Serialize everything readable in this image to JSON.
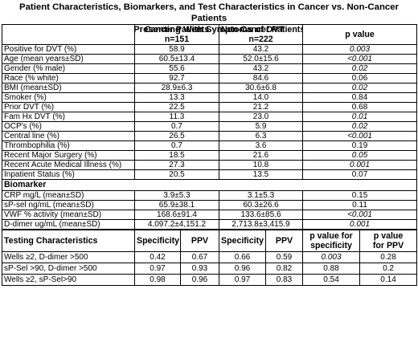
{
  "title": {
    "line1": "Patient Characteristics, Biomarkers, and Test Characteristics in Cancer vs. Non-Cancer Patients",
    "line2": "Presenting With Symptoms of DVT"
  },
  "header": {
    "cancer_line1": "Cancer Patients",
    "cancer_line2": "n=151",
    "noncancer_line1": "Non-Cancer Patients",
    "noncancer_line2": "n=222",
    "pvalue": "p value"
  },
  "characteristics": [
    {
      "label": "Positive for DVT (%)",
      "cancer": "58.9",
      "noncancer": "43.2",
      "p": "0.003",
      "italic": true
    },
    {
      "label": "Age (mean years±SD)",
      "cancer": "60.5±13.4",
      "noncancer": "52.0±15.6",
      "p": "<0.001",
      "italic": true
    },
    {
      "label": "Gender (% male)",
      "cancer": "55.6",
      "noncancer": "43.2",
      "p": "0.02",
      "italic": true
    },
    {
      "label": "Race (% white)",
      "cancer": "92.7",
      "noncancer": "84.6",
      "p": "0.06",
      "italic": false
    },
    {
      "label": "BMI (mean±SD)",
      "cancer": "28.9±6.3",
      "noncancer": "30.6±6.8",
      "p": "0.02",
      "italic": true
    },
    {
      "label": "Smoker (%)",
      "cancer": "13.3",
      "noncancer": "14.0",
      "p": "0.84",
      "italic": false
    },
    {
      "label": "Prior DVT (%)",
      "cancer": "22.5",
      "noncancer": "21.2",
      "p": "0.68",
      "italic": false
    },
    {
      "label": "Fam Hx DVT (%)",
      "cancer": "11.3",
      "noncancer": "23.0",
      "p": "0.01",
      "italic": true
    },
    {
      "label": "OCP's (%)",
      "cancer": "0.7",
      "noncancer": "5.9",
      "p": "0.02",
      "italic": true
    },
    {
      "label": "Central line (%)",
      "cancer": "26.5",
      "noncancer": "6.3",
      "p": "<0.001",
      "italic": true
    },
    {
      "label": "Thrombophilia (%)",
      "cancer": "0.7",
      "noncancer": "3.6",
      "p": "0.19",
      "italic": false
    },
    {
      "label": "Recent Major Surgery (%)",
      "cancer": "18.5",
      "noncancer": "21.6",
      "p": "0.05",
      "italic": true
    },
    {
      "label": "Recent Acute Medical Illness (%)",
      "cancer": "27.3",
      "noncancer": "10.8",
      "p": "0.001",
      "italic": true
    },
    {
      "label": "Inpatient Status (%)",
      "cancer": "20.5",
      "noncancer": "13.5",
      "p": "0.07",
      "italic": false
    }
  ],
  "biomarker_section": "Biomarker",
  "biomarkers": [
    {
      "label": "CRP mg/L (mean±SD)",
      "cancer": "3.9±5.3",
      "noncancer": "3.1±5.3",
      "p": "0.15",
      "italic": false
    },
    {
      "label": "sP-sel ng/mL (mean±SD)",
      "cancer": "65.9±38.1",
      "noncancer": "60.3±26.6",
      "p": "0.11",
      "italic": false
    },
    {
      "label": "VWF % activity (mean±SD)",
      "cancer": "168.6±91.4",
      "noncancer": "133.6±85.6",
      "p": "<0.001",
      "italic": true
    },
    {
      "label": "D-dimer ug/mL (mean±SD)",
      "cancer": "4,097.2±4,151.2",
      "noncancer": "2,713.8±3,415.9",
      "p": "0.001",
      "italic": true
    }
  ],
  "testing_header": {
    "label": "Testing Characteristics",
    "spec1": "Specificity",
    "ppv1": "PPV",
    "spec2": "Specificity",
    "ppv2": "PPV",
    "pspec_line1": "p value for",
    "pspec_line2": "specificity",
    "pppv_line1": "p value",
    "pppv_line2": "for PPV"
  },
  "testing": [
    {
      "label": "Wells ≥2, D-dimer >500",
      "spec1": "0.42",
      "ppv1": "0.67",
      "spec2": "0.66",
      "ppv2": "0.59",
      "pspec": "0.003",
      "pspec_italic": true,
      "pppv": "0.28"
    },
    {
      "label": "sP-Sel >90, D-dimer >500",
      "spec1": "0.97",
      "ppv1": "0.93",
      "spec2": "0.96",
      "ppv2": "0.82",
      "pspec": "0.88",
      "pspec_italic": false,
      "pppv": "0.2"
    },
    {
      "label": "Wells ≥2, sP-Sel>90",
      "spec1": "0.98",
      "ppv1": "0.96",
      "spec2": "0.97",
      "ppv2": "0.83",
      "pspec": "0.54",
      "pspec_italic": false,
      "pppv": "0.14"
    }
  ]
}
